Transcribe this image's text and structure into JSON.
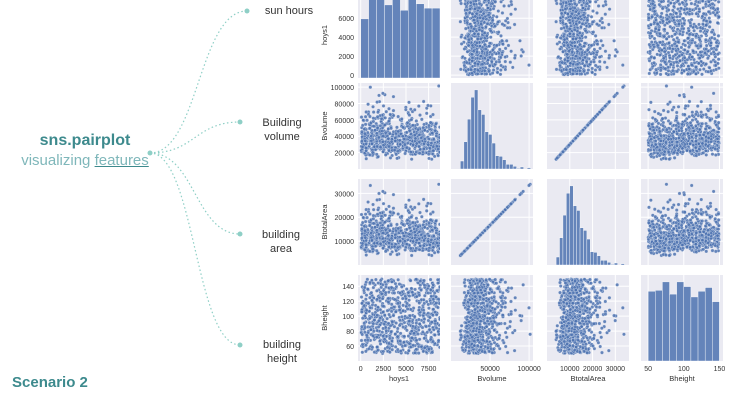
{
  "heading": {
    "title": "sns.pairplot",
    "subtitle_prefix": "visualizing ",
    "subtitle_underlined": "features"
  },
  "footer": {
    "scenario": "Scenario 2"
  },
  "features": {
    "sun_hours": "sun hours",
    "building_volume_1": "Building",
    "building_volume_2": "volume",
    "building_area": "building area",
    "building_height_1": "building",
    "building_height_2": "height"
  },
  "colors": {
    "accent": "#3d8a8d",
    "dots": "#4c72b0",
    "panel_bg": "#eaeaf2",
    "connector": "#8ecfc6"
  },
  "chart_data": {
    "type": "scatter",
    "variables": [
      "hoys1",
      "Bvolume",
      "BtotalArea",
      "Bheight"
    ],
    "ranges": {
      "hoys1": [
        -300,
        8760
      ],
      "Bvolume": [
        0,
        105000
      ],
      "BtotalArea": [
        0,
        36000
      ],
      "Bheight": [
        40,
        155
      ]
    },
    "x_ticks": {
      "hoys1": [
        0,
        2500,
        5000,
        7500
      ],
      "Bvolume": [
        50000,
        100000
      ],
      "BtotalArea": [
        10000,
        20000,
        30000
      ],
      "Bheight": [
        50,
        100,
        150
      ]
    },
    "y_ticks": {
      "hoys1": [
        0,
        2000,
        4000,
        6000
      ],
      "Bvolume": [
        20000,
        40000,
        60000,
        80000,
        100000
      ],
      "BtotalArea": [
        10000,
        20000,
        30000
      ],
      "Bheight": [
        60,
        80,
        100,
        120,
        140
      ]
    },
    "hist_hoys1": [
      5500,
      7300,
      7900,
      6800,
      7700,
      6300,
      7800,
      6900,
      6500,
      6500
    ],
    "hist_max_hoys1": 8000,
    "grid": true,
    "n_points": 750
  }
}
